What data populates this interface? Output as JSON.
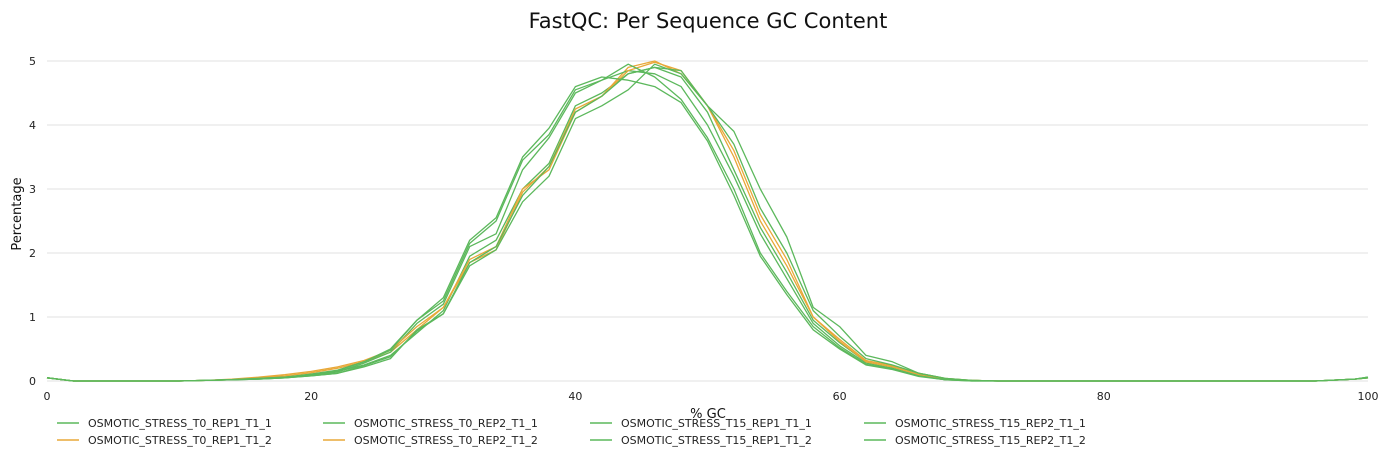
{
  "chart_data": {
    "type": "line",
    "title": "FastQC: Per Sequence GC Content",
    "xlabel": "% GC",
    "ylabel": "Percentage",
    "xlim": [
      0,
      100
    ],
    "ylim": [
      0,
      5
    ],
    "xticks": [
      0,
      20,
      40,
      60,
      80,
      100
    ],
    "yticks": [
      0,
      1,
      2,
      3,
      4,
      5
    ],
    "grid": "horizontal",
    "legend_position": "bottom",
    "x": [
      0,
      2,
      4,
      6,
      8,
      10,
      12,
      14,
      16,
      18,
      20,
      22,
      24,
      26,
      28,
      30,
      32,
      34,
      36,
      38,
      40,
      42,
      44,
      46,
      48,
      50,
      52,
      54,
      56,
      58,
      60,
      62,
      64,
      66,
      68,
      70,
      72,
      74,
      76,
      78,
      80,
      84,
      88,
      92,
      96,
      99,
      100
    ],
    "series": [
      {
        "name": "OSMOTIC_STRESS_T0_REP1_T1_1",
        "color": "#5cb85c",
        "values": [
          0.05,
          0.0,
          0.0,
          0.0,
          0.0,
          0.0,
          0.01,
          0.02,
          0.04,
          0.06,
          0.1,
          0.15,
          0.25,
          0.4,
          0.75,
          1.1,
          1.95,
          2.2,
          3.0,
          3.4,
          4.3,
          4.5,
          4.8,
          4.9,
          4.75,
          4.2,
          3.3,
          2.4,
          1.7,
          0.95,
          0.6,
          0.3,
          0.22,
          0.1,
          0.03,
          0.01,
          0.0,
          0.0,
          0.0,
          0.0,
          0.0,
          0.0,
          0.0,
          0.0,
          0.0,
          0.03,
          0.05
        ]
      },
      {
        "name": "OSMOTIC_STRESS_T0_REP1_T1_2",
        "color": "#e8a838",
        "values": [
          0.05,
          0.0,
          0.0,
          0.0,
          0.0,
          0.0,
          0.01,
          0.02,
          0.05,
          0.08,
          0.13,
          0.2,
          0.3,
          0.45,
          0.8,
          1.15,
          1.9,
          2.1,
          3.0,
          3.3,
          4.2,
          4.45,
          4.9,
          5.0,
          4.8,
          4.3,
          3.6,
          2.6,
          1.9,
          1.0,
          0.65,
          0.32,
          0.24,
          0.12,
          0.04,
          0.01,
          0.0,
          0.0,
          0.0,
          0.0,
          0.0,
          0.0,
          0.0,
          0.0,
          0.0,
          0.03,
          0.05
        ]
      },
      {
        "name": "OSMOTIC_STRESS_T0_REP2_T1_1",
        "color": "#5cb85c",
        "values": [
          0.05,
          0.0,
          0.0,
          0.0,
          0.0,
          0.0,
          0.01,
          0.02,
          0.03,
          0.05,
          0.09,
          0.14,
          0.28,
          0.45,
          0.9,
          1.2,
          2.1,
          2.3,
          3.3,
          3.8,
          4.5,
          4.7,
          4.85,
          4.8,
          4.6,
          4.0,
          3.2,
          2.3,
          1.6,
          0.9,
          0.55,
          0.28,
          0.2,
          0.08,
          0.02,
          0.01,
          0.0,
          0.0,
          0.0,
          0.0,
          0.0,
          0.0,
          0.0,
          0.0,
          0.0,
          0.03,
          0.06
        ]
      },
      {
        "name": "OSMOTIC_STRESS_T0_REP2_T1_2",
        "color": "#e8a838",
        "values": [
          0.05,
          0.0,
          0.0,
          0.0,
          0.0,
          0.0,
          0.01,
          0.03,
          0.06,
          0.1,
          0.15,
          0.22,
          0.32,
          0.48,
          0.85,
          1.15,
          1.85,
          2.05,
          2.95,
          3.35,
          4.25,
          4.45,
          4.85,
          4.98,
          4.85,
          4.3,
          3.5,
          2.5,
          1.8,
          1.0,
          0.62,
          0.3,
          0.22,
          0.1,
          0.03,
          0.01,
          0.0,
          0.0,
          0.0,
          0.0,
          0.0,
          0.0,
          0.0,
          0.0,
          0.0,
          0.03,
          0.05
        ]
      },
      {
        "name": "OSMOTIC_STRESS_T15_REP1_T1_1",
        "color": "#5cb85c",
        "values": [
          0.05,
          0.0,
          0.0,
          0.0,
          0.0,
          0.0,
          0.01,
          0.02,
          0.03,
          0.05,
          0.08,
          0.12,
          0.22,
          0.35,
          0.8,
          1.05,
          1.8,
          2.05,
          2.8,
          3.2,
          4.1,
          4.3,
          4.55,
          4.95,
          4.8,
          4.3,
          3.7,
          2.7,
          2.0,
          1.1,
          0.7,
          0.35,
          0.25,
          0.12,
          0.04,
          0.01,
          0.0,
          0.0,
          0.0,
          0.0,
          0.0,
          0.0,
          0.0,
          0.0,
          0.0,
          0.03,
          0.06
        ]
      },
      {
        "name": "OSMOTIC_STRESS_T15_REP1_T1_2",
        "color": "#5cb85c",
        "values": [
          0.05,
          0.0,
          0.0,
          0.0,
          0.0,
          0.0,
          0.01,
          0.02,
          0.04,
          0.06,
          0.1,
          0.16,
          0.3,
          0.5,
          0.95,
          1.3,
          2.2,
          2.55,
          3.5,
          3.95,
          4.6,
          4.75,
          4.7,
          4.6,
          4.35,
          3.75,
          2.9,
          1.95,
          1.35,
          0.8,
          0.5,
          0.25,
          0.18,
          0.07,
          0.02,
          0.0,
          0.0,
          0.0,
          0.0,
          0.0,
          0.0,
          0.0,
          0.0,
          0.0,
          0.0,
          0.03,
          0.05
        ]
      },
      {
        "name": "OSMOTIC_STRESS_T15_REP2_T1_1",
        "color": "#5cb85c",
        "values": [
          0.05,
          0.0,
          0.0,
          0.0,
          0.0,
          0.0,
          0.01,
          0.02,
          0.04,
          0.06,
          0.11,
          0.17,
          0.3,
          0.48,
          0.95,
          1.25,
          2.15,
          2.5,
          3.45,
          3.85,
          4.55,
          4.7,
          4.95,
          4.75,
          4.4,
          3.8,
          3.0,
          2.0,
          1.4,
          0.85,
          0.52,
          0.26,
          0.19,
          0.08,
          0.02,
          0.0,
          0.0,
          0.0,
          0.0,
          0.0,
          0.0,
          0.0,
          0.0,
          0.0,
          0.0,
          0.03,
          0.05
        ]
      },
      {
        "name": "OSMOTIC_STRESS_T15_REP2_T1_2",
        "color": "#5cb85c",
        "values": [
          0.05,
          0.0,
          0.0,
          0.0,
          0.0,
          0.0,
          0.01,
          0.02,
          0.03,
          0.05,
          0.08,
          0.12,
          0.24,
          0.38,
          0.78,
          1.05,
          1.85,
          2.1,
          2.9,
          3.35,
          4.2,
          4.45,
          4.8,
          4.9,
          4.85,
          4.3,
          3.9,
          3.0,
          2.25,
          1.15,
          0.85,
          0.4,
          0.3,
          0.12,
          0.04,
          0.01,
          0.0,
          0.0,
          0.0,
          0.0,
          0.0,
          0.0,
          0.0,
          0.0,
          0.0,
          0.03,
          0.06
        ]
      }
    ]
  },
  "legend": {
    "items": [
      {
        "label": "OSMOTIC_STRESS_T0_REP1_T1_1",
        "color": "#5cb85c"
      },
      {
        "label": "OSMOTIC_STRESS_T0_REP1_T1_2",
        "color": "#e8a838"
      },
      {
        "label": "OSMOTIC_STRESS_T0_REP2_T1_1",
        "color": "#5cb85c"
      },
      {
        "label": "OSMOTIC_STRESS_T0_REP2_T1_2",
        "color": "#e8a838"
      },
      {
        "label": "OSMOTIC_STRESS_T15_REP1_T1_1",
        "color": "#5cb85c"
      },
      {
        "label": "OSMOTIC_STRESS_T15_REP1_T1_2",
        "color": "#5cb85c"
      },
      {
        "label": "OSMOTIC_STRESS_T15_REP2_T1_1",
        "color": "#5cb85c"
      },
      {
        "label": "OSMOTIC_STRESS_T15_REP2_T1_2",
        "color": "#5cb85c"
      }
    ]
  }
}
